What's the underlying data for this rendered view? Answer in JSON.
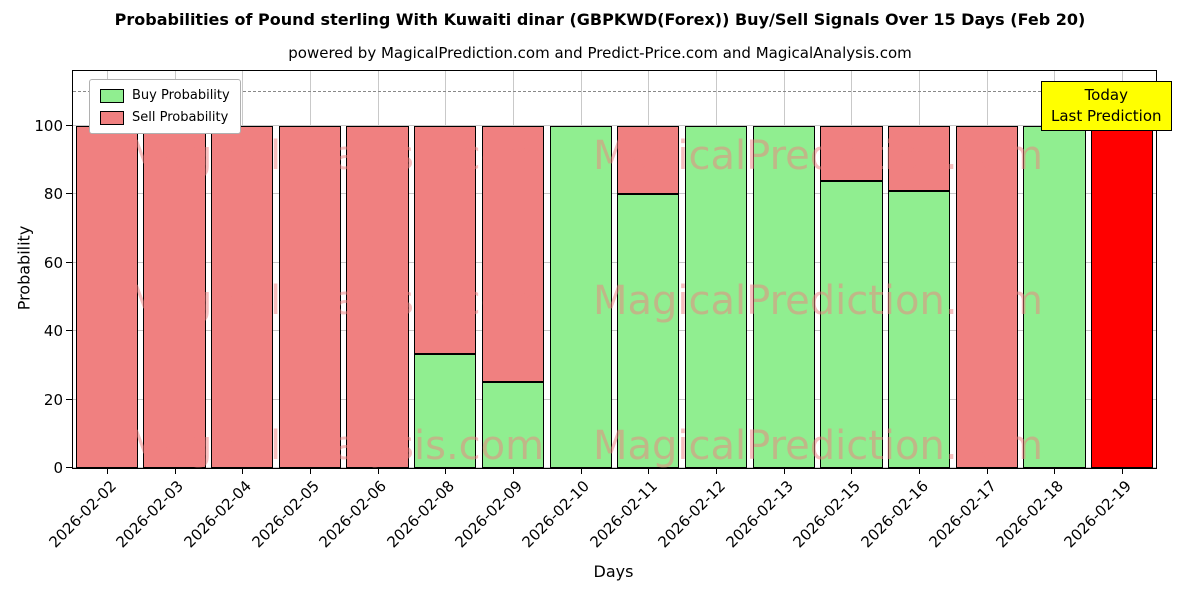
{
  "chart_data": {
    "type": "bar",
    "stacked": true,
    "title": "Probabilities of Pound sterling With Kuwaiti dinar (GBPKWD(Forex)) Buy/Sell Signals Over 15 Days (Feb 20)",
    "subtitle": "powered by MagicalPrediction.com and Predict-Price.com and MagicalAnalysis.com",
    "xlabel": "Days",
    "ylabel": "Probability",
    "ylim": [
      0,
      116
    ],
    "yticks": [
      0,
      20,
      40,
      60,
      80,
      100
    ],
    "dashed_line_y": 110,
    "grid": true,
    "categories": [
      "2026-02-02",
      "2026-02-03",
      "2026-02-04",
      "2026-02-05",
      "2026-02-06",
      "2026-02-08",
      "2026-02-09",
      "2026-02-10",
      "2026-02-11",
      "2026-02-12",
      "2026-02-13",
      "2026-02-15",
      "2026-02-16",
      "2026-02-17",
      "2026-02-18",
      "2026-02-19"
    ],
    "series": [
      {
        "name": "Buy Probability",
        "color": "#90ee90",
        "values": [
          0,
          0,
          0,
          0,
          0,
          33.33,
          25,
          100,
          80,
          100,
          100,
          84,
          81,
          0,
          100,
          0
        ]
      },
      {
        "name": "Sell Probability",
        "color": "#f08080",
        "values": [
          100,
          100,
          100,
          100,
          100,
          66.67,
          75,
          0,
          20,
          0,
          0,
          16,
          19,
          100,
          0,
          100
        ]
      }
    ],
    "today_bar": {
      "index": 15,
      "color": "#ff0000"
    },
    "legend": {
      "position": "upper left",
      "items": [
        {
          "label": "Buy Probability",
          "color": "#90ee90"
        },
        {
          "label": "Sell Probability",
          "color": "#f08080"
        }
      ]
    },
    "annotation_box": {
      "lines": [
        "Today",
        "Last Prediction"
      ],
      "bg": "#ffff00"
    },
    "watermarks": [
      "MagicalAnalysis.com",
      "MagicalPrediction.com"
    ]
  }
}
